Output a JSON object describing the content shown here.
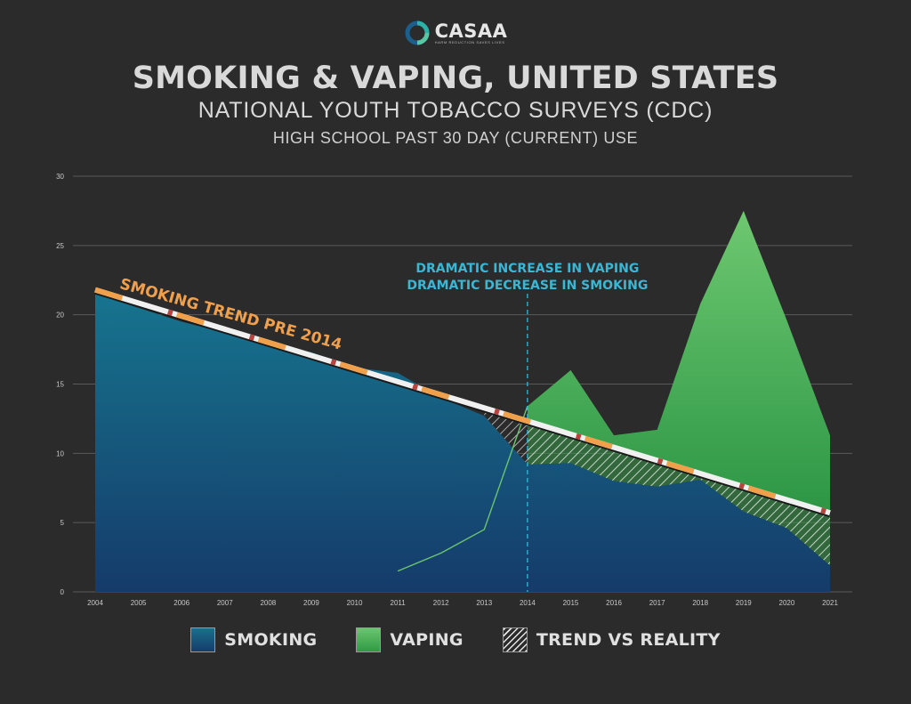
{
  "brand": {
    "name": "CASAA",
    "tagline": "HARM REDUCTION SAVES LIVES",
    "ring_colors": [
      "#2bb3a8",
      "#1d5f8a"
    ]
  },
  "header": {
    "title": "SMOKING & VAPING, UNITED STATES",
    "subtitle": "NATIONAL YOUTH TOBACCO SURVEYS (CDC)",
    "subtitle2": "HIGH SCHOOL PAST 30 DAY (CURRENT) USE"
  },
  "legend": {
    "smoking": "SMOKING",
    "vaping": "VAPING",
    "trend": "TREND VS REALITY"
  },
  "chart_data": {
    "type": "area",
    "x": [
      2004,
      2005,
      2006,
      2007,
      2008,
      2009,
      2010,
      2011,
      2012,
      2013,
      2014,
      2015,
      2016,
      2017,
      2018,
      2019,
      2020,
      2021
    ],
    "x_tick_labels": [
      "2004",
      "2005",
      "2006",
      "2007",
      "2008",
      "2009",
      "2010",
      "2011",
      "2012",
      "2013",
      "2014",
      "2015",
      "2016",
      "2017",
      "2018",
      "2019",
      "2020",
      "2021"
    ],
    "ylim": [
      0,
      30
    ],
    "y_ticks": [
      0,
      5,
      10,
      15,
      20,
      25,
      30
    ],
    "grid": true,
    "series": [
      {
        "name": "SMOKING",
        "color": "#17607f",
        "values": [
          21.5,
          20.5,
          19.5,
          18.7,
          17.9,
          17.3,
          16.2,
          15.8,
          14.0,
          12.7,
          9.2,
          9.3,
          8.0,
          7.6,
          8.1,
          5.8,
          4.6,
          1.9
        ]
      },
      {
        "name": "VAPING",
        "color": "#5dbb63",
        "x": [
          2011,
          2012,
          2013,
          2014,
          2015,
          2016,
          2017,
          2018,
          2019,
          2020,
          2021
        ],
        "values": [
          1.5,
          2.8,
          4.5,
          13.4,
          16.0,
          11.3,
          11.7,
          20.8,
          27.5,
          19.6,
          11.3
        ]
      }
    ],
    "trend_line": {
      "label": "SMOKING TREND PRE 2014",
      "start": {
        "x": 2004,
        "y": 21.8
      },
      "end": {
        "x": 2021,
        "y": 5.7
      }
    },
    "annotation": {
      "lines": [
        "DRAMATIC INCREASE IN VAPING",
        "DRAMATIC DECREASE IN SMOKING"
      ],
      "x": 2014,
      "color": "#3ab7d4"
    }
  }
}
